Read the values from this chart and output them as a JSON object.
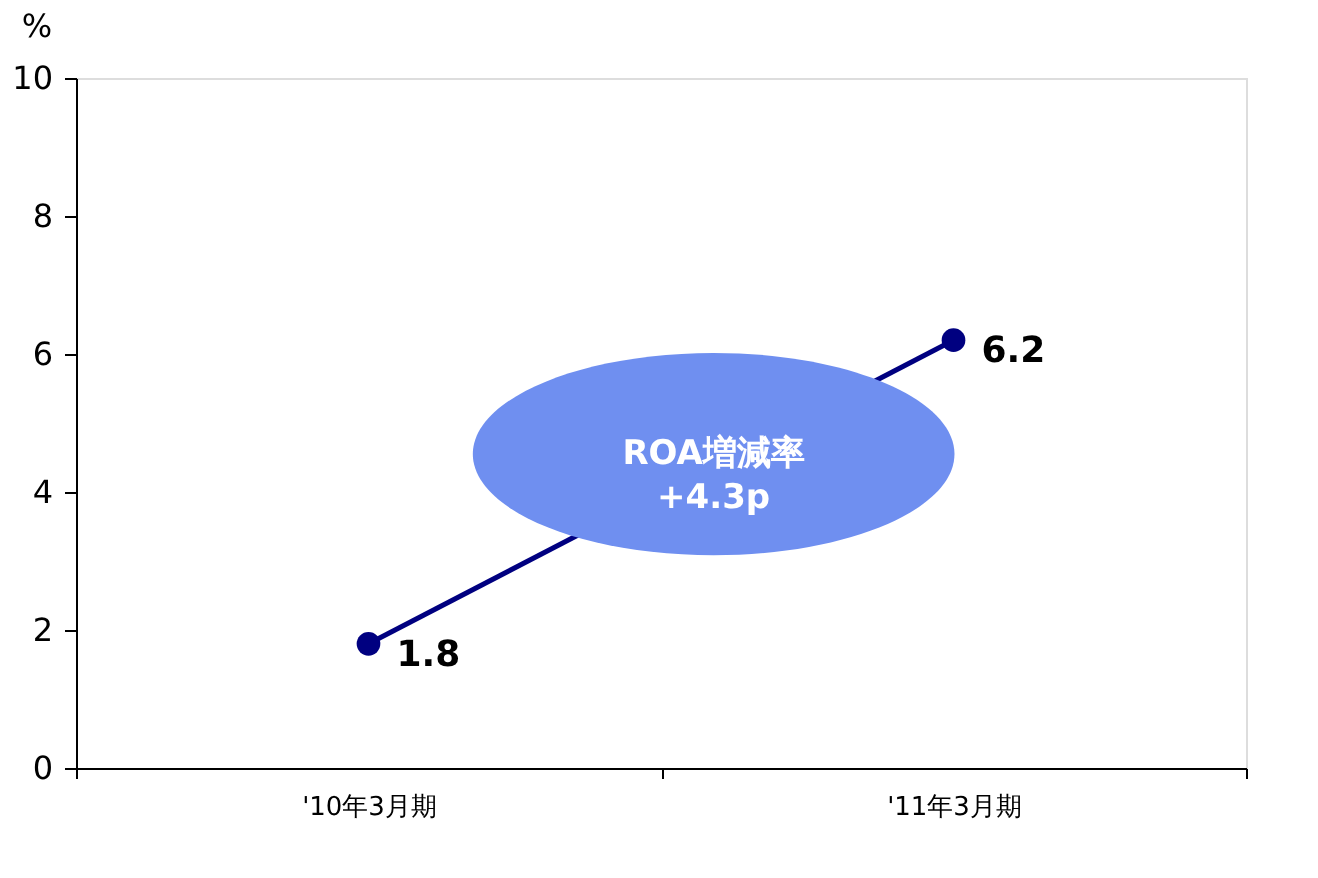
{
  "chart_data": {
    "type": "line",
    "ylabel": "%",
    "categories": [
      "'10年3月期",
      "'11年3月期"
    ],
    "series": [
      {
        "color": "#000080",
        "values": [
          1.8,
          6.2
        ]
      }
    ],
    "ylim": [
      0,
      10
    ],
    "yticks": [
      0,
      2,
      4,
      6,
      8,
      10
    ],
    "grid": false,
    "marker": "circle",
    "line_style": "solid",
    "data_labels": true,
    "annotations": [
      "ROA増減率\n+4.3p"
    ]
  }
}
